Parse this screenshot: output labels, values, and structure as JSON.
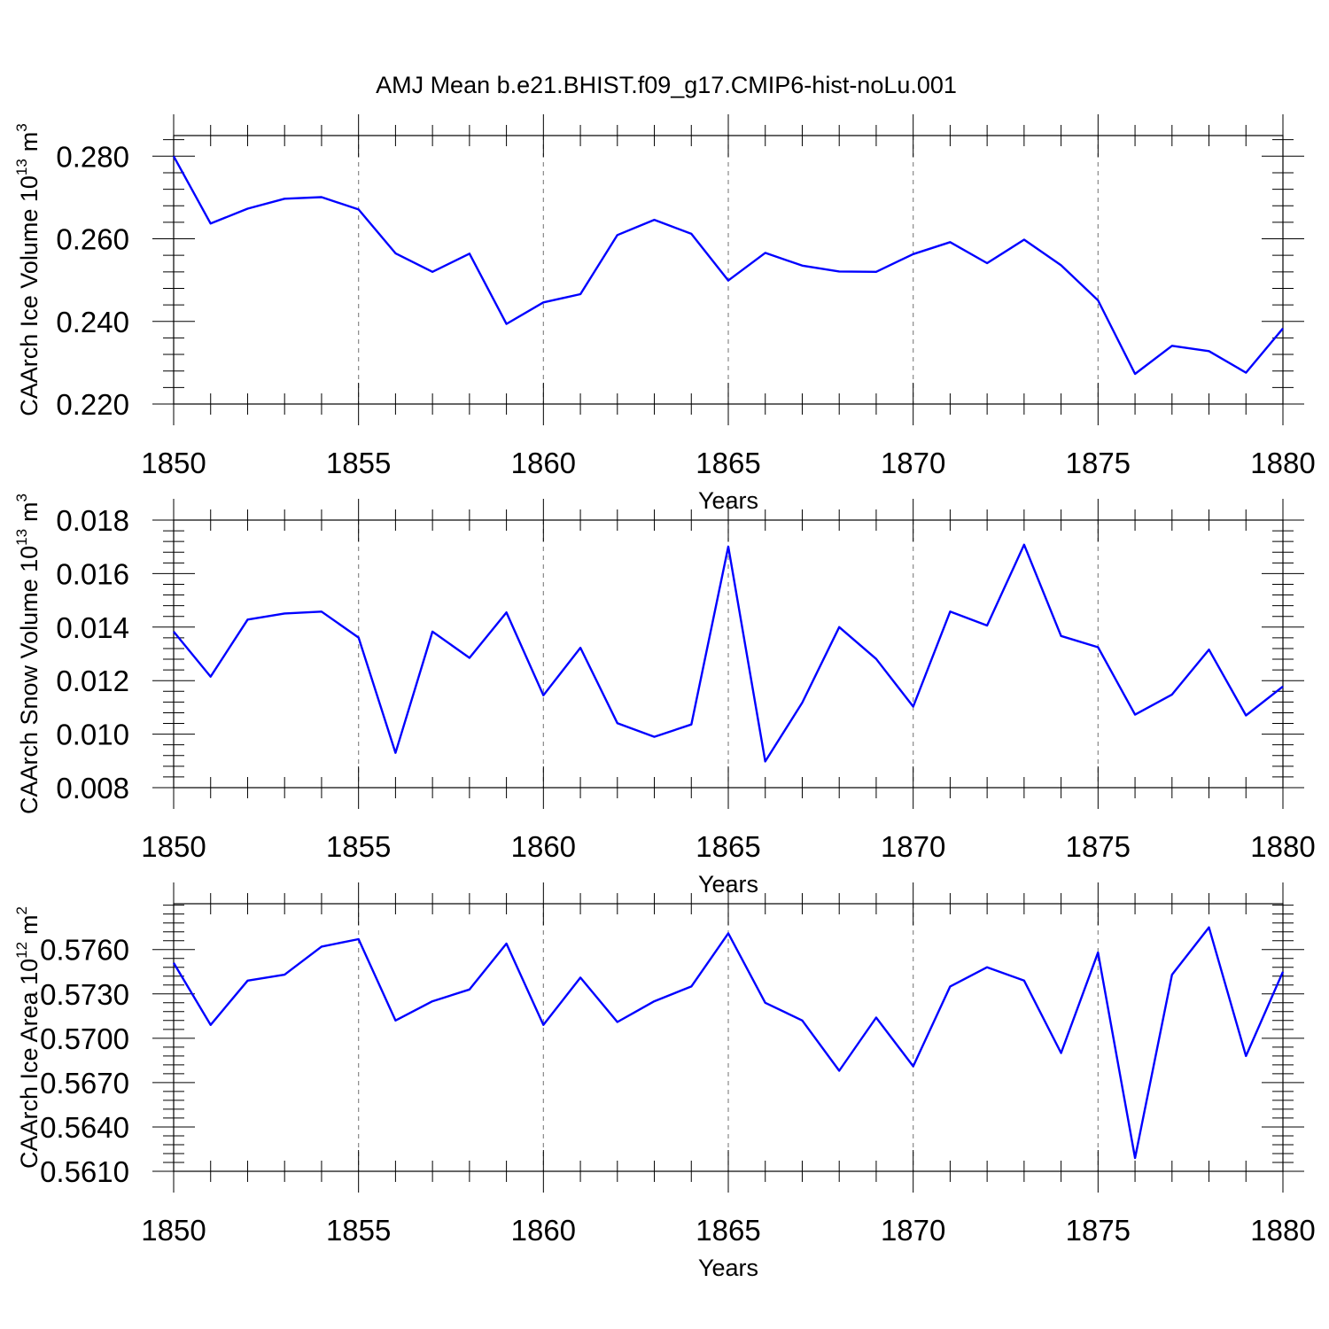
{
  "title": "AMJ Mean b.e21.BHIST.f09_g17.CMIP6-hist-noLu.001",
  "chart_data": [
    {
      "type": "line",
      "ylabel": "CAArch Ice Volume 10",
      "ylabel_exp": "13",
      "ylabel_unit": "m",
      "ylabel_unit_exp": "3",
      "xlabel": "Years",
      "xlim": [
        1850,
        1880
      ],
      "ylim": [
        0.22,
        0.285
      ],
      "xticks": [
        "1850",
        "1855",
        "1860",
        "1865",
        "1870",
        "1875",
        "1880"
      ],
      "yticks": [
        "0.280",
        "0.260",
        "0.240",
        "0.220"
      ],
      "color": "#0000ff",
      "x": [
        1850,
        1851,
        1852,
        1853,
        1854,
        1855,
        1856,
        1857,
        1858,
        1859,
        1860,
        1861,
        1862,
        1863,
        1864,
        1865,
        1866,
        1867,
        1868,
        1869,
        1870,
        1871,
        1872,
        1873,
        1874,
        1875,
        1876,
        1877,
        1878,
        1879,
        1880
      ],
      "values": [
        0.28,
        0.2637,
        0.2673,
        0.2697,
        0.2701,
        0.2671,
        0.2565,
        0.252,
        0.2564,
        0.2394,
        0.2446,
        0.2466,
        0.2609,
        0.2646,
        0.2612,
        0.2499,
        0.2566,
        0.2535,
        0.2521,
        0.252,
        0.2563,
        0.2592,
        0.2541,
        0.2598,
        0.2536,
        0.2451,
        0.2273,
        0.2341,
        0.2328,
        0.2276,
        0.2383
      ]
    },
    {
      "type": "line",
      "ylabel": "CAArch Snow Volume 10",
      "ylabel_exp": "13",
      "ylabel_unit": "m",
      "ylabel_unit_exp": "3",
      "xlabel": "Years",
      "xlim": [
        1850,
        1880
      ],
      "ylim": [
        0.008,
        0.018
      ],
      "xticks": [
        "1850",
        "1855",
        "1860",
        "1865",
        "1870",
        "1875",
        "1880"
      ],
      "yticks": [
        "0.018",
        "0.016",
        "0.014",
        "0.012",
        "0.010",
        "0.008"
      ],
      "color": "#0000ff",
      "x": [
        1850,
        1851,
        1852,
        1853,
        1854,
        1855,
        1856,
        1857,
        1858,
        1859,
        1860,
        1861,
        1862,
        1863,
        1864,
        1865,
        1866,
        1867,
        1868,
        1869,
        1870,
        1871,
        1872,
        1873,
        1874,
        1875,
        1876,
        1877,
        1878,
        1879,
        1880
      ],
      "values": [
        0.01383,
        0.01215,
        0.01428,
        0.01451,
        0.01458,
        0.01361,
        0.0093,
        0.01383,
        0.01285,
        0.01455,
        0.01145,
        0.01323,
        0.01041,
        0.0099,
        0.01036,
        0.01701,
        0.00898,
        0.01118,
        0.014,
        0.01281,
        0.01103,
        0.01458,
        0.01406,
        0.01708,
        0.01367,
        0.01325,
        0.01073,
        0.01148,
        0.01316,
        0.0107,
        0.01178
      ]
    },
    {
      "type": "line",
      "ylabel": "CAArch Ice Area 10",
      "ylabel_exp": "12",
      "ylabel_unit": "m",
      "ylabel_unit_exp": "2",
      "xlabel": "Years",
      "xlim": [
        1850,
        1880
      ],
      "ylim": [
        0.561,
        0.5791
      ],
      "xticks": [
        "1850",
        "1855",
        "1860",
        "1865",
        "1870",
        "1875",
        "1880"
      ],
      "yticks": [
        "0.5760",
        "0.5730",
        "0.5700",
        "0.5670",
        "0.5640",
        "0.5610"
      ],
      "color": "#0000ff",
      "x": [
        1850,
        1851,
        1852,
        1853,
        1854,
        1855,
        1856,
        1857,
        1858,
        1859,
        1860,
        1861,
        1862,
        1863,
        1864,
        1865,
        1866,
        1867,
        1868,
        1869,
        1870,
        1871,
        1872,
        1873,
        1874,
        1875,
        1876,
        1877,
        1878,
        1879,
        1880
      ],
      "values": [
        0.5751,
        0.5709,
        0.5739,
        0.5743,
        0.5762,
        0.5767,
        0.5712,
        0.5725,
        0.5733,
        0.5764,
        0.5709,
        0.5741,
        0.5711,
        0.5725,
        0.5735,
        0.5771,
        0.5724,
        0.5712,
        0.5678,
        0.5714,
        0.5681,
        0.5735,
        0.5748,
        0.5739,
        0.569,
        0.5758,
        0.5619,
        0.5743,
        0.5775,
        0.5688,
        0.5745
      ]
    }
  ]
}
